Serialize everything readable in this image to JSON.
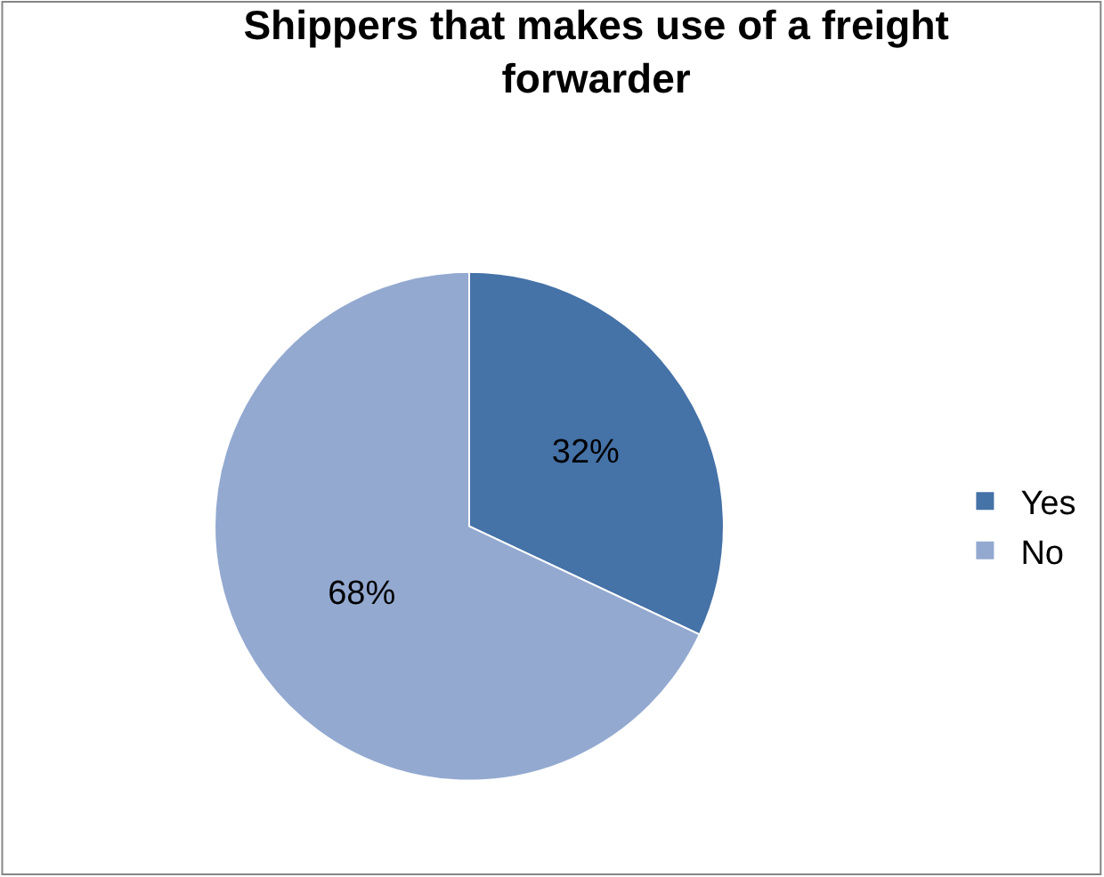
{
  "chart_data": {
    "type": "pie",
    "title": "Shippers that makes use of a freight forwarder",
    "categories": [
      "Yes",
      "No"
    ],
    "values": [
      32,
      68
    ],
    "colors": [
      "#4572a7",
      "#93a9d0"
    ],
    "value_labels": [
      "32%",
      "68%"
    ],
    "legend": "right"
  }
}
